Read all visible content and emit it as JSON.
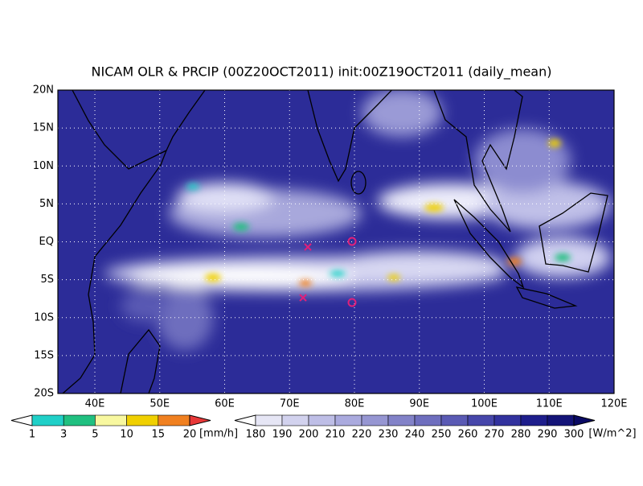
{
  "title": "NICAM OLR & PRCIP (00Z20OCT2011) init:00Z19OCT2011 (daily_mean)",
  "lat_labels": [
    "20N",
    "15N",
    "10N",
    "5N",
    "EQ",
    "5S",
    "10S",
    "15S",
    "20S"
  ],
  "lon_labels": [
    "40E",
    "50E",
    "60E",
    "70E",
    "80E",
    "90E",
    "100E",
    "110E",
    "120E"
  ],
  "precip_colorbar": {
    "labels": [
      1,
      3,
      5,
      10,
      15,
      20
    ],
    "unit": "[mm/h]",
    "colors": [
      "#ffffff",
      "#20d0c8",
      "#20c080",
      "#f8f8a0",
      "#f0d000",
      "#f08020",
      "#e83838"
    ]
  },
  "olr_colorbar": {
    "labels": [
      180,
      190,
      200,
      210,
      220,
      230,
      240,
      250,
      260,
      270,
      280,
      290,
      300
    ],
    "unit": "[W/m^2]",
    "colors": [
      "#ffffff",
      "#e6e6f5",
      "#d2d2ee",
      "#bebee6",
      "#aaaade",
      "#9696d2",
      "#8282c8",
      "#6e6ebe",
      "#5a5ab4",
      "#4646aa",
      "#32329e",
      "#1e1e8c",
      "#141478",
      "#0a0a64"
    ]
  }
}
